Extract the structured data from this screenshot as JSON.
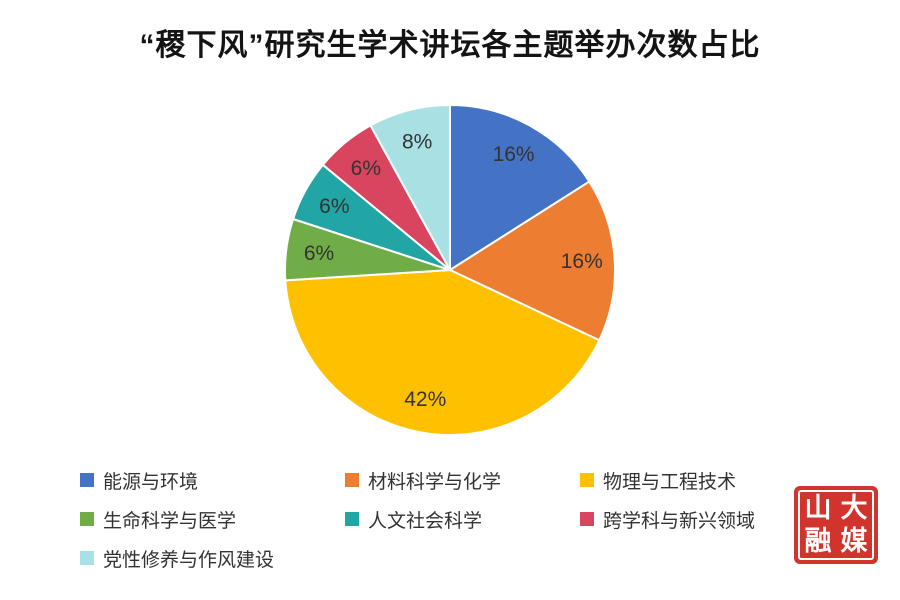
{
  "chart_data": {
    "type": "pie",
    "title": "“稷下风”研究生学术讲坛各主题举办次数占比",
    "direction": "clockwise",
    "start_angle_deg": 0,
    "legend_position": "bottom",
    "slices": [
      {
        "label": "能源与环境",
        "value": 16,
        "display": "16%",
        "color": "#4472C4"
      },
      {
        "label": "材料科学与化学",
        "value": 16,
        "display": "16%",
        "color": "#ED7D31"
      },
      {
        "label": "物理与工程技术",
        "value": 42,
        "display": "42%",
        "color": "#FFC000"
      },
      {
        "label": "生命科学与医学",
        "value": 6,
        "display": "6%",
        "color": "#70AD47"
      },
      {
        "label": "人文社会科学",
        "value": 6,
        "display": "6%",
        "color": "#21A5A5"
      },
      {
        "label": "跨学科与新兴领域",
        "value": 6,
        "display": "6%",
        "color": "#D9455F"
      },
      {
        "label": "党性修养与作风建设",
        "value": 8,
        "display": "8%",
        "color": "#A8E0E3"
      }
    ]
  },
  "logo": {
    "text": "山大融媒",
    "chars": {
      "c0": "山",
      "c1": "大",
      "c2": "融",
      "c3": "媒"
    },
    "bg_color": "#d0342c",
    "text_color": "#ffffff"
  }
}
